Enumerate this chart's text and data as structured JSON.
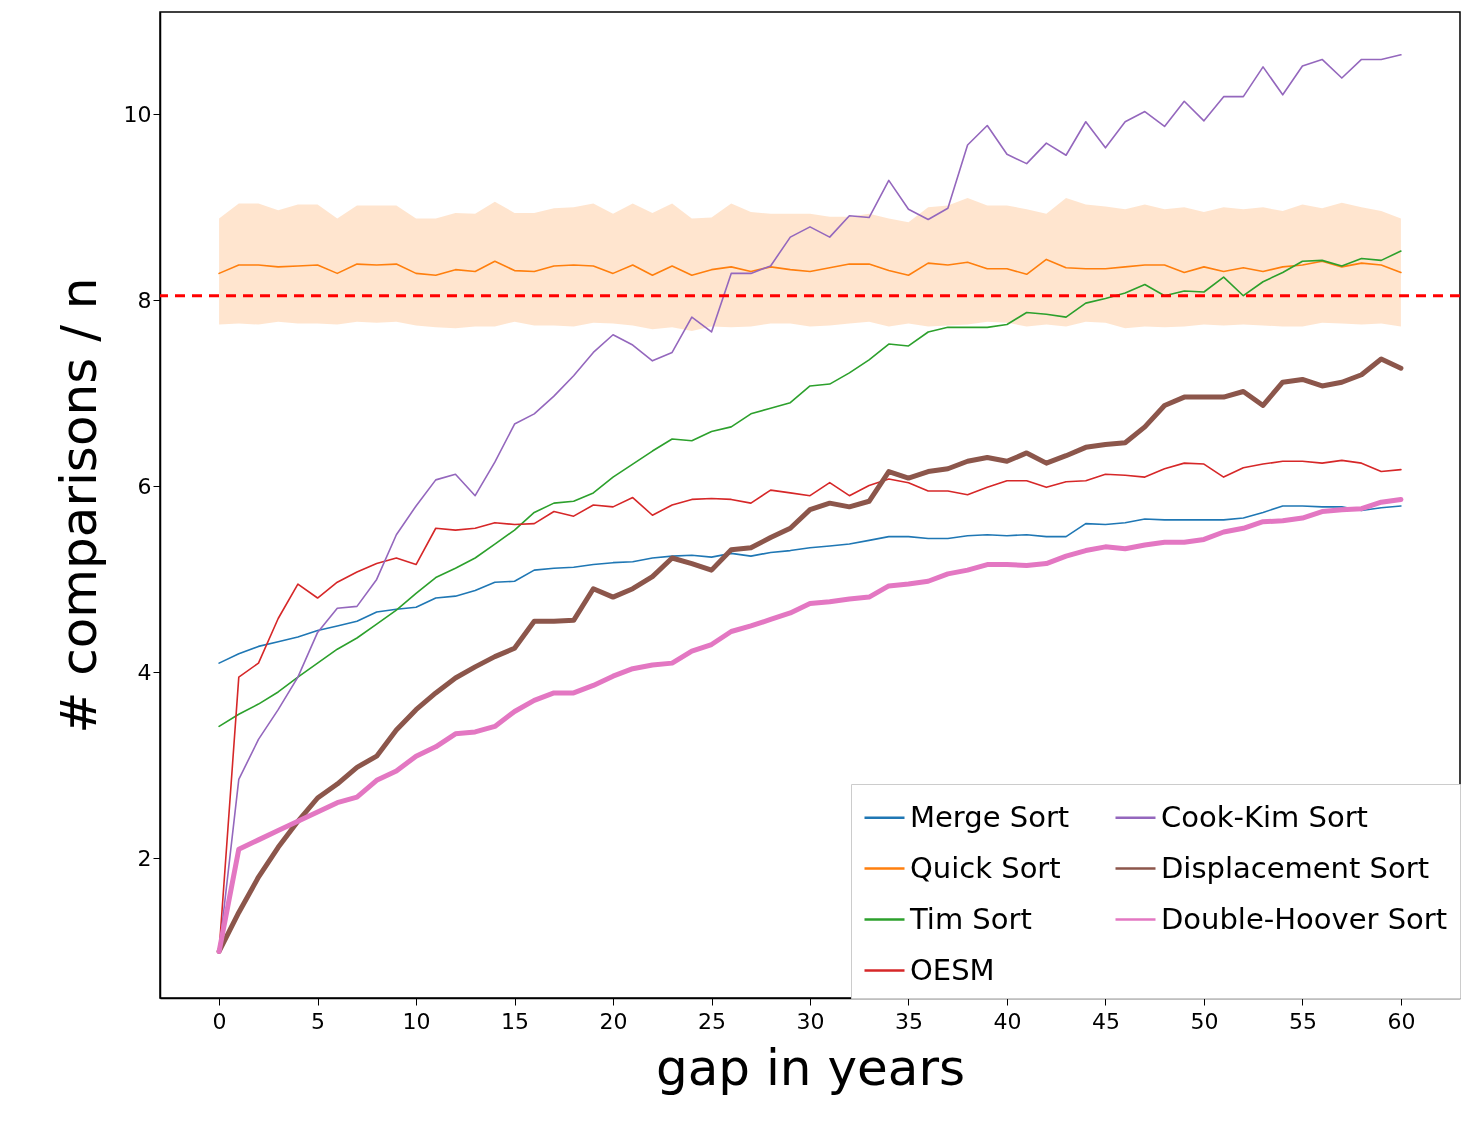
{
  "chart_data": {
    "type": "line",
    "xlabel": "gap in years",
    "ylabel": "# comparisons / n",
    "x": [
      0,
      1,
      2,
      3,
      4,
      5,
      6,
      7,
      8,
      9,
      10,
      11,
      12,
      13,
      14,
      15,
      16,
      17,
      18,
      19,
      20,
      21,
      22,
      23,
      24,
      25,
      26,
      27,
      28,
      29,
      30,
      31,
      32,
      33,
      34,
      35,
      36,
      37,
      38,
      39,
      40,
      41,
      42,
      43,
      44,
      45,
      46,
      47,
      48,
      49,
      50,
      51,
      52,
      53,
      54,
      55,
      56,
      57,
      58,
      59,
      60
    ],
    "xlim": [
      -3,
      63
    ],
    "xticks": [
      0,
      5,
      10,
      15,
      20,
      25,
      30,
      35,
      40,
      45,
      50,
      55,
      60
    ],
    "ylim": [
      0.5,
      11.1
    ],
    "yticks": [
      2,
      4,
      6,
      8,
      10
    ],
    "grid": false,
    "legend": "bottom right",
    "marker": "none",
    "line_style": "solid",
    "ref_lines": [
      {
        "axis": "y",
        "value": 8.05,
        "color": "#ff0000",
        "line_style": "dashed"
      }
    ],
    "series": [
      {
        "name": "Merge Sort",
        "color": "#1f77b4",
        "values": [
          4.1,
          4.2,
          4.28,
          4.33,
          4.38,
          4.45,
          4.5,
          4.55,
          4.65,
          4.68,
          4.7,
          4.8,
          4.82,
          4.88,
          4.97,
          4.98,
          5.1,
          5.12,
          5.13,
          5.16,
          5.18,
          5.19,
          5.23,
          5.25,
          5.26,
          5.24,
          5.28,
          5.25,
          5.29,
          5.31,
          5.34,
          5.36,
          5.38,
          5.42,
          5.46,
          5.46,
          5.44,
          5.44,
          5.47,
          5.48,
          5.47,
          5.48,
          5.46,
          5.46,
          5.6,
          5.59,
          5.61,
          5.65,
          5.64,
          5.64,
          5.64,
          5.64,
          5.66,
          5.72,
          5.79,
          5.79,
          5.78,
          5.78,
          5.74,
          5.77,
          5.79
        ]
      },
      {
        "name": "Quick Sort",
        "color": "#ff7f0e",
        "values": [
          8.29,
          8.38,
          8.38,
          8.36,
          8.37,
          8.38,
          8.29,
          8.39,
          8.38,
          8.39,
          8.29,
          8.27,
          8.33,
          8.31,
          8.42,
          8.32,
          8.31,
          8.37,
          8.38,
          8.37,
          8.29,
          8.38,
          8.27,
          8.37,
          8.27,
          8.33,
          8.36,
          8.31,
          8.36,
          8.33,
          8.31,
          8.35,
          8.39,
          8.39,
          8.32,
          8.27,
          8.4,
          8.38,
          8.41,
          8.34,
          8.34,
          8.28,
          8.44,
          8.35,
          8.34,
          8.34,
          8.36,
          8.38,
          8.38,
          8.3,
          8.36,
          8.31,
          8.35,
          8.31,
          8.36,
          8.38,
          8.42,
          8.36,
          8.4,
          8.38,
          8.3
        ],
        "upper": [
          8.88,
          9.04,
          9.04,
          8.97,
          9.03,
          9.03,
          8.88,
          9.02,
          9.02,
          9.02,
          8.88,
          8.88,
          8.94,
          8.93,
          9.06,
          8.94,
          8.94,
          8.99,
          9.0,
          9.04,
          8.93,
          9.04,
          8.94,
          9.04,
          8.88,
          8.89,
          9.04,
          8.95,
          8.93,
          8.93,
          8.93,
          8.9,
          8.9,
          8.93,
          8.88,
          8.84,
          9.0,
          9.02,
          9.1,
          9.02,
          9.02,
          8.98,
          8.93,
          9.1,
          9.03,
          9.01,
          8.98,
          9.03,
          8.98,
          9.0,
          8.95,
          9.0,
          8.98,
          9.0,
          8.96,
          9.03,
          8.99,
          9.05,
          9.0,
          8.96,
          8.88
        ],
        "lower": [
          7.74,
          7.75,
          7.74,
          7.77,
          7.75,
          7.75,
          7.74,
          7.77,
          7.76,
          7.77,
          7.73,
          7.71,
          7.7,
          7.72,
          7.72,
          7.77,
          7.73,
          7.73,
          7.72,
          7.76,
          7.75,
          7.73,
          7.69,
          7.71,
          7.67,
          7.72,
          7.71,
          7.72,
          7.75,
          7.75,
          7.72,
          7.73,
          7.75,
          7.77,
          7.72,
          7.75,
          7.72,
          7.73,
          7.74,
          7.77,
          7.76,
          7.72,
          7.74,
          7.72,
          7.77,
          7.76,
          7.7,
          7.72,
          7.71,
          7.72,
          7.74,
          7.73,
          7.74,
          7.73,
          7.72,
          7.72,
          7.76,
          7.75,
          7.74,
          7.75,
          7.72
        ]
      },
      {
        "name": "Tim Sort",
        "color": "#2ca02c",
        "values": [
          3.42,
          3.55,
          3.66,
          3.79,
          3.95,
          4.1,
          4.25,
          4.37,
          4.52,
          4.67,
          4.85,
          5.02,
          5.12,
          5.23,
          5.38,
          5.53,
          5.72,
          5.82,
          5.84,
          5.93,
          6.1,
          6.24,
          6.38,
          6.51,
          6.49,
          6.59,
          6.64,
          6.78,
          6.84,
          6.9,
          7.08,
          7.1,
          7.22,
          7.36,
          7.53,
          7.51,
          7.66,
          7.71,
          7.71,
          7.71,
          7.74,
          7.87,
          7.85,
          7.82,
          7.97,
          8.02,
          8.08,
          8.17,
          8.05,
          8.1,
          8.09,
          8.25,
          8.05,
          8.2,
          8.3,
          8.42,
          8.43,
          8.37,
          8.45,
          8.43,
          8.53
        ]
      },
      {
        "name": "OESM",
        "color": "#d62728",
        "values": [
          1.0,
          3.95,
          4.1,
          4.58,
          4.95,
          4.8,
          4.97,
          5.08,
          5.17,
          5.23,
          5.16,
          5.55,
          5.53,
          5.55,
          5.61,
          5.59,
          5.6,
          5.73,
          5.68,
          5.8,
          5.78,
          5.88,
          5.69,
          5.8,
          5.86,
          5.87,
          5.86,
          5.82,
          5.96,
          5.93,
          5.9,
          6.04,
          5.9,
          6.01,
          6.08,
          6.04,
          5.95,
          5.95,
          5.91,
          5.99,
          6.06,
          6.06,
          5.99,
          6.05,
          6.06,
          6.13,
          6.12,
          6.1,
          6.19,
          6.25,
          6.24,
          6.1,
          6.2,
          6.24,
          6.27,
          6.27,
          6.25,
          6.28,
          6.25,
          6.16,
          6.18
        ]
      },
      {
        "name": "Cook-Kim Sort",
        "color": "#9467bd",
        "values": [
          1.0,
          2.85,
          3.28,
          3.6,
          3.95,
          4.43,
          4.69,
          4.71,
          5.0,
          5.48,
          5.79,
          6.07,
          6.13,
          5.9,
          6.26,
          6.67,
          6.78,
          6.97,
          7.19,
          7.44,
          7.63,
          7.52,
          7.35,
          7.44,
          7.82,
          7.66,
          8.29,
          8.29,
          8.37,
          8.68,
          8.79,
          8.68,
          8.91,
          8.89,
          9.29,
          8.98,
          8.87,
          8.99,
          9.67,
          9.88,
          9.57,
          9.47,
          9.69,
          9.56,
          9.92,
          9.64,
          9.92,
          10.03,
          9.87,
          10.14,
          9.93,
          10.19,
          10.19,
          10.51,
          10.21,
          10.52,
          10.59,
          10.39,
          10.59,
          10.59,
          10.64
        ]
      },
      {
        "name": "Displacement Sort",
        "color": "#8c564b",
        "values": [
          1.0,
          1.42,
          1.8,
          2.12,
          2.4,
          2.65,
          2.8,
          2.98,
          3.1,
          3.38,
          3.6,
          3.78,
          3.94,
          4.06,
          4.17,
          4.26,
          4.55,
          4.55,
          4.56,
          4.9,
          4.81,
          4.9,
          5.03,
          5.23,
          5.17,
          5.1,
          5.32,
          5.34,
          5.45,
          5.55,
          5.75,
          5.82,
          5.78,
          5.84,
          6.16,
          6.09,
          6.16,
          6.19,
          6.27,
          6.31,
          6.27,
          6.36,
          6.25,
          6.33,
          6.42,
          6.45,
          6.47,
          6.64,
          6.87,
          6.96,
          6.96,
          6.96,
          7.02,
          6.87,
          7.12,
          7.15,
          7.08,
          7.12,
          7.2,
          7.37,
          7.27
        ]
      },
      {
        "name": "Double-Hoover Sort",
        "color": "#e377c2",
        "values": [
          1.0,
          2.1,
          2.2,
          2.3,
          2.4,
          2.5,
          2.6,
          2.66,
          2.84,
          2.94,
          3.1,
          3.2,
          3.34,
          3.36,
          3.42,
          3.58,
          3.7,
          3.78,
          3.78,
          3.86,
          3.96,
          4.04,
          4.08,
          4.1,
          4.23,
          4.3,
          4.44,
          4.5,
          4.57,
          4.64,
          4.74,
          4.76,
          4.79,
          4.81,
          4.93,
          4.95,
          4.98,
          5.06,
          5.1,
          5.16,
          5.16,
          5.15,
          5.17,
          5.25,
          5.31,
          5.35,
          5.33,
          5.37,
          5.4,
          5.4,
          5.43,
          5.51,
          5.55,
          5.62,
          5.63,
          5.66,
          5.73,
          5.75,
          5.76,
          5.83,
          5.86
        ]
      }
    ]
  }
}
